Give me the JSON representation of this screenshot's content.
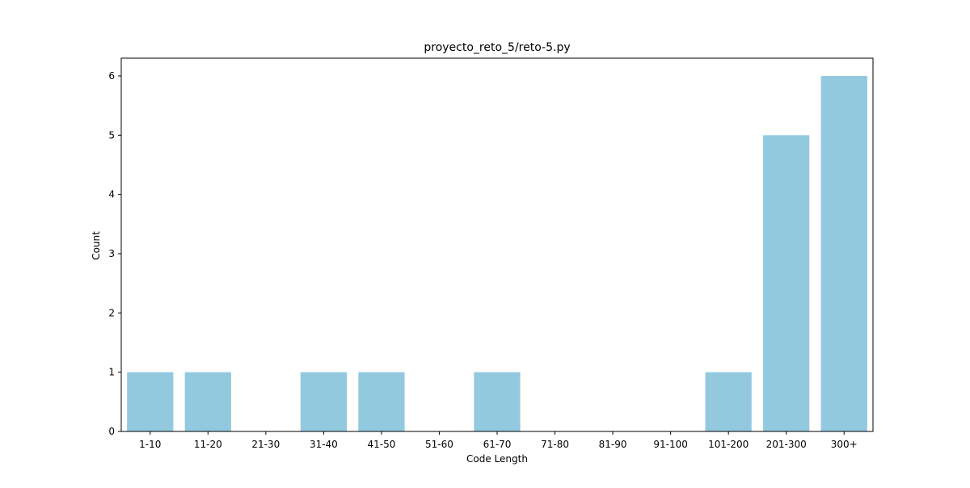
{
  "chart_data": {
    "type": "bar",
    "title": "proyecto_reto_5/reto-5.py",
    "xlabel": "Code Length",
    "ylabel": "Count",
    "categories": [
      "1-10",
      "11-20",
      "21-30",
      "31-40",
      "41-50",
      "51-60",
      "61-70",
      "71-80",
      "81-90",
      "91-100",
      "101-200",
      "201-300",
      "300+"
    ],
    "values": [
      1,
      1,
      0,
      1,
      1,
      0,
      1,
      0,
      0,
      0,
      1,
      5,
      6
    ],
    "ylim": [
      0,
      6.3
    ],
    "yticks": [
      0,
      1,
      2,
      3,
      4,
      5,
      6
    ],
    "grid": false,
    "colors": {
      "bar": "#92c9df",
      "axis": "#000000"
    }
  }
}
